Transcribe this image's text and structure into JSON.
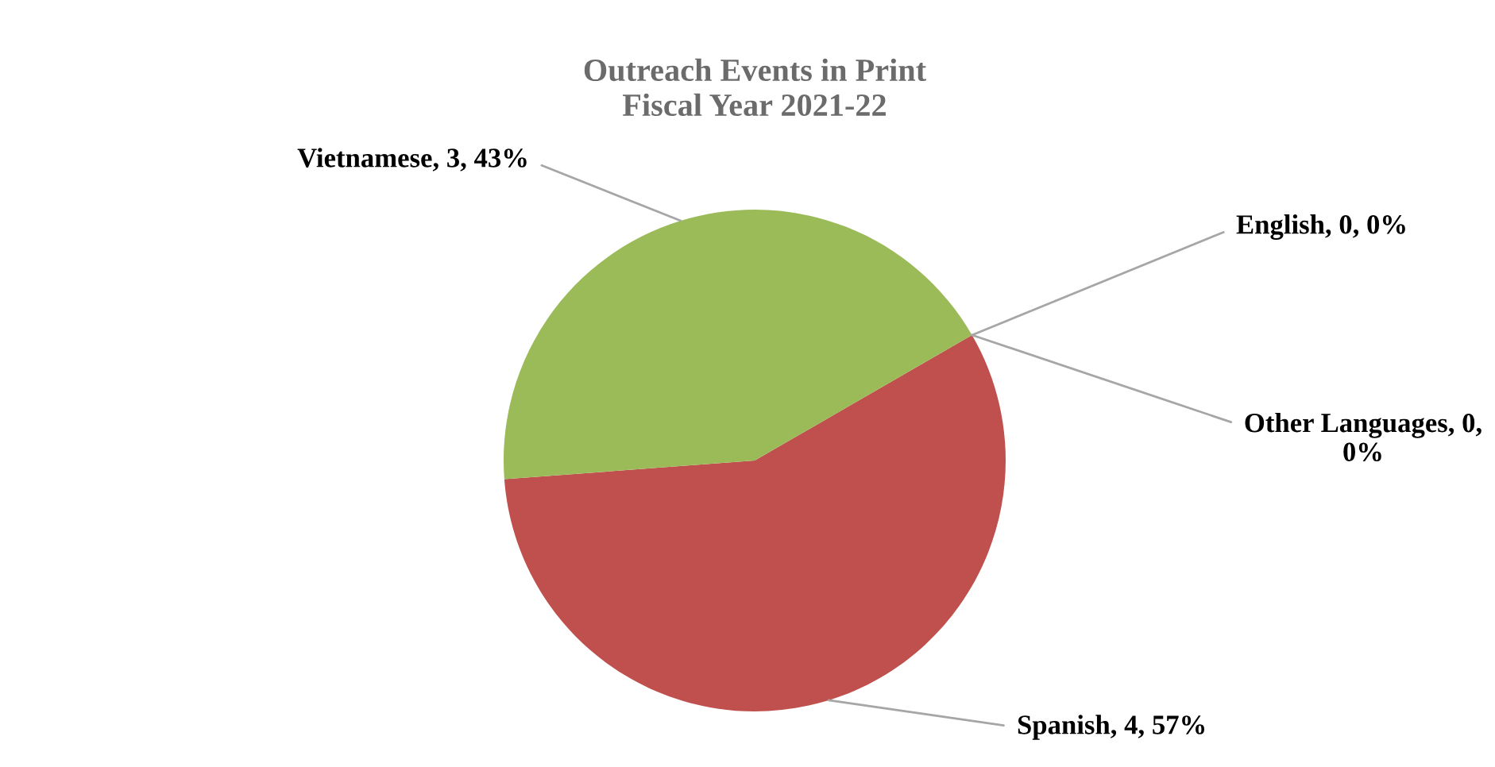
{
  "chart_data": {
    "type": "pie",
    "title": "Outreach Events in Print",
    "subtitle": "Fiscal Year 2021-22",
    "categories": [
      "English",
      "Spanish",
      "Vietnamese",
      "Other Languages"
    ],
    "values": [
      0,
      4,
      3,
      0
    ],
    "colors": [
      "#1f3b6e",
      "#c0504d",
      "#9bbb59",
      "#8064a2"
    ],
    "value_labels": [
      ", 0, 0%",
      ", 4, 57%",
      ", 3, 43%",
      ", 0, 0%"
    ]
  }
}
